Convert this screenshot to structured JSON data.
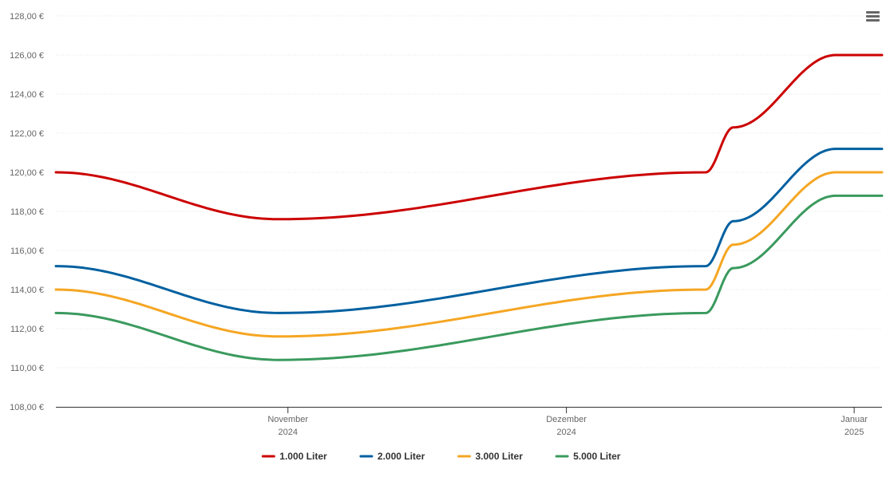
{
  "chart_data": {
    "type": "line",
    "title": "",
    "xlabel": "",
    "ylabel": "",
    "ylim": [
      108,
      128
    ],
    "y_ticks": [
      "108,00 €",
      "110,00 €",
      "112,00 €",
      "114,00 €",
      "116,00 €",
      "118,00 €",
      "120,00 €",
      "122,00 €",
      "124,00 €",
      "126,00 €",
      "128,00 €"
    ],
    "x_ticks": [
      {
        "date": "2024-11-01",
        "month": "November",
        "year": "2024"
      },
      {
        "date": "2024-12-01",
        "month": "Dezember",
        "year": "2024"
      },
      {
        "date": "2025-01-01",
        "month": "Januar",
        "year": "2025"
      }
    ],
    "xlim": [
      "2024-10-07",
      "2025-01-04"
    ],
    "grid": true,
    "legend_position": "bottom-center",
    "series": [
      {
        "name": "1.000 Liter",
        "color": "#cc0000",
        "points": [
          {
            "x": "2024-10-07",
            "y": 120.0
          },
          {
            "x": "2024-10-31",
            "y": 117.6
          },
          {
            "x": "2024-12-16",
            "y": 120.0
          },
          {
            "x": "2024-12-19",
            "y": 122.3
          },
          {
            "x": "2024-12-30",
            "y": 126.0
          },
          {
            "x": "2025-01-04",
            "y": 126.0
          }
        ]
      },
      {
        "name": "2.000 Liter",
        "color": "#0060a0",
        "points": [
          {
            "x": "2024-10-07",
            "y": 115.2
          },
          {
            "x": "2024-10-31",
            "y": 112.8
          },
          {
            "x": "2024-12-16",
            "y": 115.2
          },
          {
            "x": "2024-12-19",
            "y": 117.5
          },
          {
            "x": "2024-12-30",
            "y": 121.2
          },
          {
            "x": "2025-01-04",
            "y": 121.2
          }
        ]
      },
      {
        "name": "3.000 Liter",
        "color": "#f5a623",
        "points": [
          {
            "x": "2024-10-07",
            "y": 114.0
          },
          {
            "x": "2024-10-31",
            "y": 111.6
          },
          {
            "x": "2024-12-16",
            "y": 114.0
          },
          {
            "x": "2024-12-19",
            "y": 116.3
          },
          {
            "x": "2024-12-30",
            "y": 120.0
          },
          {
            "x": "2025-01-04",
            "y": 120.0
          }
        ]
      },
      {
        "name": "5.000 Liter",
        "color": "#3a9a5e",
        "points": [
          {
            "x": "2024-10-07",
            "y": 112.8
          },
          {
            "x": "2024-10-31",
            "y": 110.4
          },
          {
            "x": "2024-12-16",
            "y": 112.8
          },
          {
            "x": "2024-12-19",
            "y": 115.1
          },
          {
            "x": "2024-12-30",
            "y": 118.8
          },
          {
            "x": "2025-01-04",
            "y": 118.8
          }
        ]
      }
    ]
  },
  "ui": {
    "menu_icon": "hamburger-menu-icon"
  }
}
